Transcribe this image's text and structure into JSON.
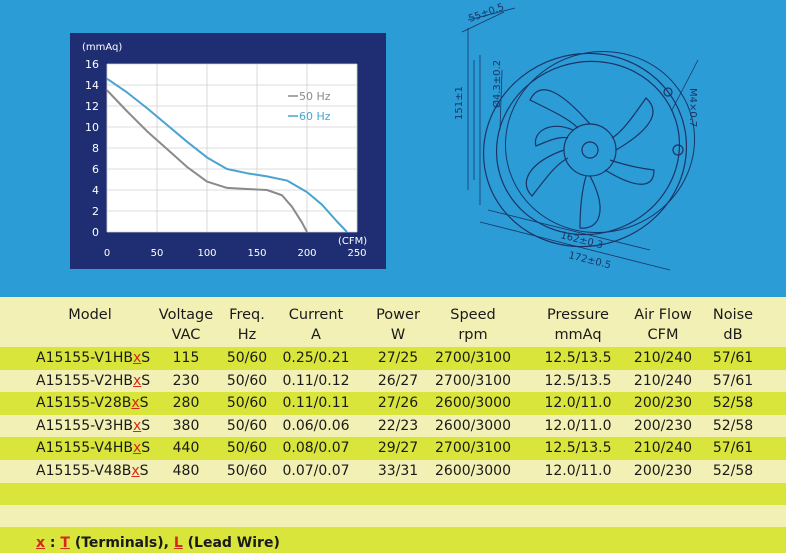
{
  "chart_data": {
    "type": "line",
    "ylabel": "(mmAq)",
    "xlabel": "(CFM)",
    "xlim": [
      0,
      250
    ],
    "ylim": [
      0,
      16
    ],
    "xticks": [
      "0",
      "50",
      "100",
      "150",
      "200",
      "250"
    ],
    "yticks": [
      "0",
      "2",
      "4",
      "6",
      "8",
      "10",
      "12",
      "14",
      "16"
    ],
    "grid": true,
    "legend_position": "right",
    "series": [
      {
        "name": "50 Hz",
        "color": "#8a8a8a",
        "x": [
          0,
          20,
          40,
          60,
          80,
          100,
          120,
          140,
          160,
          175,
          185,
          195,
          200
        ],
        "y": [
          13.5,
          11.5,
          9.6,
          7.9,
          6.2,
          4.8,
          4.2,
          4.1,
          4.0,
          3.5,
          2.4,
          0.9,
          0
        ]
      },
      {
        "name": "60 Hz",
        "color": "#4aa3d0",
        "x": [
          0,
          20,
          40,
          60,
          80,
          100,
          120,
          140,
          160,
          180,
          200,
          215,
          230,
          240
        ],
        "y": [
          14.6,
          13.3,
          11.8,
          10.2,
          8.6,
          7.1,
          6.0,
          5.6,
          5.3,
          4.9,
          3.8,
          2.6,
          1.0,
          0
        ]
      }
    ]
  },
  "drawing": {
    "dim_top": "55±0.5",
    "dim_left": "151±1",
    "dim_hole": "Ø4.3±0.2",
    "dim_screw": "M4×0.7",
    "dim_inner": "162±0.3",
    "dim_outer": "172±0.5"
  },
  "table": {
    "headers": [
      {
        "l1": "Model",
        "l2": ""
      },
      {
        "l1": "Voltage",
        "l2": "VAC"
      },
      {
        "l1": "Freq.",
        "l2": "Hz"
      },
      {
        "l1": "Current",
        "l2": "A"
      },
      {
        "l1": "Power",
        "l2": "W"
      },
      {
        "l1": "Speed",
        "l2": "rpm"
      },
      {
        "l1": "Pressure",
        "l2": "mmAq"
      },
      {
        "l1": "Air Flow",
        "l2": "CFM"
      },
      {
        "l1": "Noise",
        "l2": "dB"
      }
    ],
    "rows": [
      {
        "model_prefix": "A15155-V1HB",
        "model_x": "x",
        "model_suffix": "S",
        "voltage": "115",
        "freq": "50/60",
        "current": "0.25/0.21",
        "power": "27/25",
        "speed": "2700/3100",
        "pressure": "12.5/13.5",
        "airflow": "210/240",
        "noise": "57/61"
      },
      {
        "model_prefix": "A15155-V2HB",
        "model_x": "x",
        "model_suffix": "S",
        "voltage": "230",
        "freq": "50/60",
        "current": "0.11/0.12",
        "power": "26/27",
        "speed": "2700/3100",
        "pressure": "12.5/13.5",
        "airflow": "210/240",
        "noise": "57/61"
      },
      {
        "model_prefix": "A15155-V28B",
        "model_x": "x",
        "model_suffix": "S",
        "voltage": "280",
        "freq": "50/60",
        "current": "0.11/0.11",
        "power": "27/26",
        "speed": "2600/3000",
        "pressure": "12.0/11.0",
        "airflow": "200/230",
        "noise": "52/58"
      },
      {
        "model_prefix": "A15155-V3HB",
        "model_x": "x",
        "model_suffix": "S",
        "voltage": "380",
        "freq": "50/60",
        "current": "0.06/0.06",
        "power": "22/23",
        "speed": "2600/3000",
        "pressure": "12.0/11.0",
        "airflow": "200/230",
        "noise": "52/58"
      },
      {
        "model_prefix": "A15155-V4HB",
        "model_x": "x",
        "model_suffix": "S",
        "voltage": "440",
        "freq": "50/60",
        "current": "0.08/0.07",
        "power": "29/27",
        "speed": "2700/3100",
        "pressure": "12.5/13.5",
        "airflow": "210/240",
        "noise": "57/61"
      },
      {
        "model_prefix": "A15155-V48B",
        "model_x": "x",
        "model_suffix": "S",
        "voltage": "480",
        "freq": "50/60",
        "current": "0.07/0.07",
        "power": "33/31",
        "speed": "2600/3000",
        "pressure": "12.0/11.0",
        "airflow": "200/230",
        "noise": "52/58"
      }
    ]
  },
  "note": {
    "x": "x",
    "colon": " : ",
    "t": "T",
    "t_text": " (Terminals), ",
    "l": "L",
    "l_text": " (Lead Wire)"
  },
  "colors": {
    "top_bg": "#2b9cd6",
    "chart_bg": "#1f2e73",
    "header_bg": "#f2f0b4",
    "row_dark": "#d9e53a",
    "row_light": "#f2f0b4",
    "accent_red": "#d22a1a"
  }
}
